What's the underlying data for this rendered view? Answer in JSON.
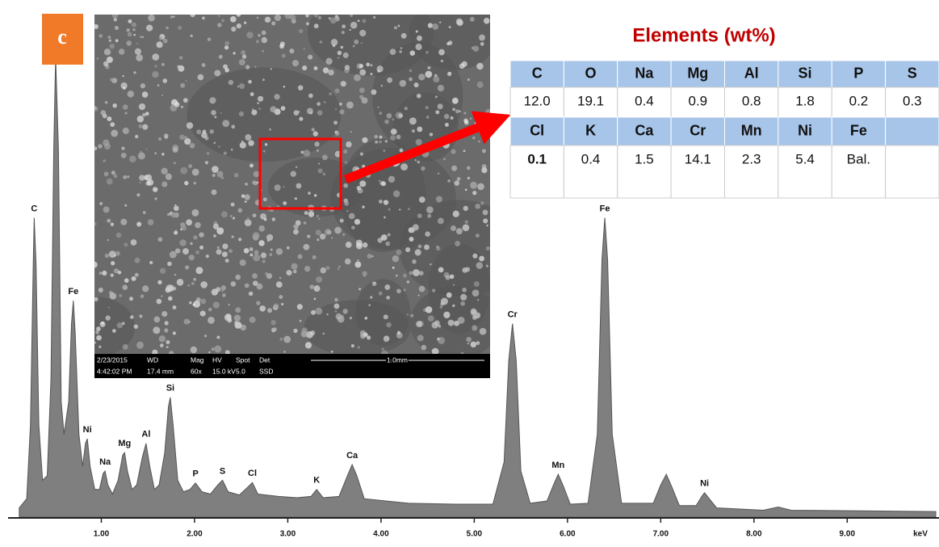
{
  "panel_label": "c",
  "sem_image": {
    "info": [
      [
        "2/23/2015",
        "4:42:02 PM"
      ],
      [
        "WD",
        "17.4 mm"
      ],
      [
        "Mag",
        "60x"
      ],
      [
        "HV",
        "15.0 kV"
      ],
      [
        "Spot",
        "5.0"
      ],
      [
        "Det",
        "SSD"
      ]
    ],
    "scale_bar": "1.0mm"
  },
  "table": {
    "title": "Elements (wt%)",
    "rows": [
      [
        "C",
        "O",
        "Na",
        "Mg",
        "Al",
        "Si",
        "P",
        "S"
      ],
      [
        "12.0",
        "19.1",
        "0.4",
        "0.9",
        "0.8",
        "1.8",
        "0.2",
        "0.3"
      ],
      [
        "Cl",
        "K",
        "Ca",
        "Cr",
        "Mn",
        "Ni",
        "Fe"
      ],
      [
        "0.1",
        "0.4",
        "1.5",
        "14.1",
        "2.3",
        "5.4",
        "Bal."
      ]
    ]
  },
  "chart_data": {
    "type": "area",
    "color": "#7f7f7f",
    "xlabel": "keV",
    "xlim": [
      0,
      9.95
    ],
    "ylim": [
      0,
      100
    ],
    "xticks": [
      {
        "value": 1,
        "label": "1.00"
      },
      {
        "value": 2,
        "label": "2.00"
      },
      {
        "value": 3,
        "label": "3.00"
      },
      {
        "value": 4,
        "label": "4.00"
      },
      {
        "value": 5,
        "label": "5.00"
      },
      {
        "value": 6,
        "label": "6.00"
      },
      {
        "value": 7,
        "label": "7.00"
      },
      {
        "value": 8,
        "label": "8.00"
      },
      {
        "value": 9,
        "label": "9.00"
      }
    ],
    "x": [
      0.12,
      0.2,
      0.24,
      0.27,
      0.28,
      0.3,
      0.33,
      0.37,
      0.42,
      0.46,
      0.49,
      0.51,
      0.54,
      0.57,
      0.6,
      0.65,
      0.68,
      0.7,
      0.72,
      0.76,
      0.8,
      0.83,
      0.85,
      0.88,
      0.93,
      0.98,
      1.02,
      1.04,
      1.07,
      1.12,
      1.18,
      1.23,
      1.25,
      1.28,
      1.33,
      1.38,
      1.44,
      1.48,
      1.52,
      1.57,
      1.62,
      1.68,
      1.72,
      1.74,
      1.77,
      1.82,
      1.88,
      1.95,
      2.01,
      2.08,
      2.17,
      2.25,
      2.3,
      2.36,
      2.48,
      2.57,
      2.62,
      2.68,
      2.9,
      3.1,
      3.25,
      3.31,
      3.38,
      3.55,
      3.64,
      3.69,
      3.74,
      3.82,
      4.05,
      4.3,
      4.8,
      5.2,
      5.32,
      5.37,
      5.41,
      5.45,
      5.5,
      5.6,
      5.78,
      5.85,
      5.9,
      5.95,
      6.03,
      6.22,
      6.32,
      6.37,
      6.4,
      6.43,
      6.48,
      6.58,
      6.92,
      7.0,
      7.06,
      7.12,
      7.2,
      7.38,
      7.44,
      7.47,
      7.52,
      7.6,
      8.1,
      8.26,
      8.4,
      9.95
    ],
    "values": [
      2,
      4,
      20,
      55,
      65,
      55,
      20,
      8,
      9,
      30,
      80,
      100,
      80,
      25,
      18,
      25,
      42,
      47,
      40,
      18,
      11,
      16,
      17,
      11,
      6,
      6,
      9.5,
      10,
      7,
      5,
      8,
      13.5,
      14,
      10,
      6,
      7,
      13,
      16,
      11,
      6,
      7,
      14,
      24,
      26,
      20,
      8,
      5.5,
      6,
      7.4,
      5.5,
      5,
      7,
      8,
      5.5,
      4.8,
      6.5,
      7.5,
      5,
      4.5,
      4.2,
      4.5,
      6,
      4.2,
      4.5,
      9,
      11.4,
      9,
      4,
      3.5,
      3,
      2.8,
      2.8,
      12,
      34,
      42,
      34,
      10,
      3,
      3.5,
      7,
      9.3,
      7,
      2.8,
      3,
      18,
      56,
      65,
      56,
      18,
      3,
      3,
      7,
      9.3,
      6.5,
      2.5,
      2.5,
      4.5,
      5.3,
      4,
      2,
      1.5,
      2.2,
      1.5,
      1.2
    ],
    "peaks": [
      {
        "label": "C",
        "x": 0.28
      },
      {
        "label": "Fe",
        "x": 0.7
      },
      {
        "label": "Ni",
        "x": 0.85
      },
      {
        "label": "Na",
        "x": 1.04
      },
      {
        "label": "Mg",
        "x": 1.25
      },
      {
        "label": "Al",
        "x": 1.48
      },
      {
        "label": "Si",
        "x": 1.74
      },
      {
        "label": "P",
        "x": 2.01
      },
      {
        "label": "S",
        "x": 2.3
      },
      {
        "label": "Cl",
        "x": 2.62
      },
      {
        "label": "K",
        "x": 3.31
      },
      {
        "label": "Ca",
        "x": 3.69
      },
      {
        "label": "Cr",
        "x": 5.41
      },
      {
        "label": "Mn",
        "x": 5.9
      },
      {
        "label": "Fe",
        "x": 6.4
      },
      {
        "label": "Ni",
        "x": 7.47
      }
    ]
  }
}
